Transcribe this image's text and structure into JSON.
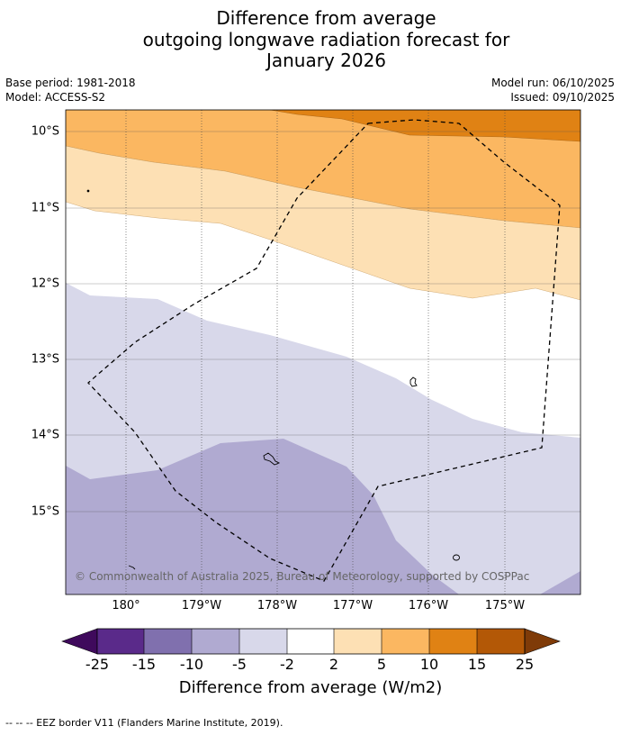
{
  "title": {
    "line1": "Difference from average",
    "line2": "outgoing longwave radiation forecast for",
    "line3": "January 2026"
  },
  "meta": {
    "base_period": "Base period: 1981-2018",
    "model": "Model: ACCESS-S2",
    "model_run": "Model run: 06/10/2025",
    "issued": "Issued: 09/10/2025"
  },
  "map": {
    "lat_labels": [
      "10°S",
      "11°S",
      "12°S",
      "13°S",
      "14°S",
      "15°S"
    ],
    "lon_labels": [
      "180°",
      "179°W",
      "178°W",
      "177°W",
      "176°W",
      "175°W"
    ],
    "copyright": "© Commonwealth of Australia 2025, Bureau of Meteorology, supported by COSPPac"
  },
  "colorbar": {
    "ticks": [
      "-25",
      "-15",
      "-10",
      "-5",
      "-2",
      "2",
      "5",
      "10",
      "15",
      "25"
    ],
    "colors": [
      "#3f0a5c",
      "#5a2a8a",
      "#8070ae",
      "#b0aad1",
      "#d8d8ea",
      "#ffffff",
      "#fde0b4",
      "#fbb761",
      "#e08214",
      "#b35806",
      "#7f3b08"
    ],
    "label": "Difference from average (W/m2)"
  },
  "footnote": "--  --  -- EEZ border V11 (Flanders Marine Institute, 2019)."
}
